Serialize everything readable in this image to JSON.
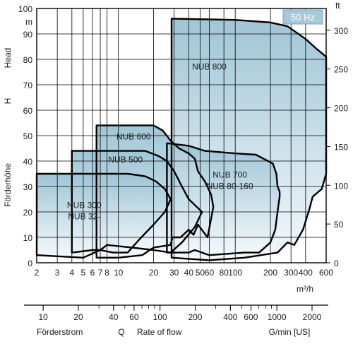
{
  "chart_data": {
    "type": "area",
    "xscale": "log",
    "xlim": [
      2,
      600
    ],
    "ylim": [
      0,
      100
    ],
    "x_unit": "m³/h",
    "y_unit_left": "m",
    "y_unit_right": "ft",
    "badge": "50 Hz",
    "ylabel": [
      "Förderhöhe",
      "H",
      "Head"
    ],
    "xlabel_bottom": [
      "Förderstrom",
      "Q",
      "Rate of flow",
      "G/min [US]"
    ],
    "x_ticks": [
      2,
      3,
      4,
      5,
      6,
      7,
      8,
      10,
      20,
      30,
      40,
      50,
      60,
      80,
      100,
      200,
      300,
      400,
      600
    ],
    "x_tick_labels": [
      "2",
      "3",
      "4",
      "5",
      "6",
      "7",
      "8",
      "10",
      "20",
      "30",
      "40",
      "50",
      "60",
      "80",
      "100",
      "200",
      "300",
      "400",
      "600"
    ],
    "y_ticks": [
      0,
      10,
      20,
      30,
      40,
      50,
      60,
      70,
      80,
      90,
      100
    ],
    "y_tick_labels": [
      "0",
      "10",
      "20",
      "30",
      "40",
      "50",
      "60",
      "70",
      "80",
      "90",
      "100"
    ],
    "ft_ticks": [
      0,
      50,
      100,
      150,
      200,
      250,
      300
    ],
    "ft_tick_labels": [
      "0",
      "50",
      "100",
      "150",
      "200",
      "250",
      "300"
    ],
    "gpm_ticks": [
      10,
      20,
      40,
      60,
      100,
      200,
      400,
      600,
      1000,
      2000
    ],
    "gpm_tick_labels": [
      "10",
      "20",
      "40",
      "60",
      "100",
      "200",
      "400",
      "600",
      "1000",
      "2000"
    ],
    "series": [
      {
        "name": "NUB 800",
        "label_lines": [
          "NUB 800"
        ],
        "label_at": [
          60,
          76
        ],
        "points": [
          [
            28.5,
            96
          ],
          [
            100,
            95.5
          ],
          [
            200,
            94.5
          ],
          [
            280,
            93
          ],
          [
            400,
            88
          ],
          [
            500,
            84
          ],
          [
            600,
            81
          ],
          [
            600,
            35
          ],
          [
            550,
            29
          ],
          [
            460,
            26
          ],
          [
            430,
            21
          ],
          [
            380,
            13
          ],
          [
            320,
            7
          ],
          [
            280,
            8
          ],
          [
            230,
            4
          ],
          [
            120,
            2
          ],
          [
            60,
            1
          ],
          [
            28.5,
            2
          ]
        ]
      },
      {
        "name": "NUB 700 / NUB 80-160",
        "label_lines": [
          "NUB 700",
          "NUB 80-160"
        ],
        "label_at": [
          90,
          33.5
        ],
        "points": [
          [
            26,
            47
          ],
          [
            40,
            46
          ],
          [
            55,
            44
          ],
          [
            100,
            43
          ],
          [
            150,
            42.5
          ],
          [
            210,
            39
          ],
          [
            225,
            35
          ],
          [
            230,
            30
          ],
          [
            240,
            28
          ],
          [
            240,
            26
          ],
          [
            230,
            20
          ],
          [
            220,
            13
          ],
          [
            200,
            8
          ],
          [
            160,
            4
          ],
          [
            120,
            4
          ],
          [
            60,
            3
          ],
          [
            45,
            5
          ],
          [
            40,
            4
          ],
          [
            34,
            4
          ],
          [
            26,
            4
          ]
        ]
      },
      {
        "name": "NUB 600",
        "label_lines": [
          "NUB 600"
        ],
        "label_at": [
          13.5,
          48.5
        ],
        "points": [
          [
            6.5,
            54
          ],
          [
            20,
            54
          ],
          [
            24,
            52
          ],
          [
            28,
            48
          ],
          [
            33,
            45
          ],
          [
            40,
            43
          ],
          [
            45,
            41
          ],
          [
            48,
            36
          ],
          [
            55,
            32
          ],
          [
            62,
            27
          ],
          [
            65,
            22
          ],
          [
            58,
            10
          ],
          [
            48,
            15
          ],
          [
            44,
            11
          ],
          [
            40,
            13
          ],
          [
            34,
            10
          ],
          [
            29,
            10
          ],
          [
            28,
            7
          ],
          [
            20,
            6
          ],
          [
            16,
            3
          ],
          [
            10,
            2
          ],
          [
            6.5,
            2
          ]
        ]
      },
      {
        "name": "NUB 500",
        "label_lines": [
          "NUB 500"
        ],
        "label_at": [
          11.5,
          39.5
        ],
        "points": [
          [
            4,
            44
          ],
          [
            17,
            44
          ],
          [
            22,
            42
          ],
          [
            26,
            40
          ],
          [
            30,
            36
          ],
          [
            35,
            30
          ],
          [
            40,
            25
          ],
          [
            52,
            20
          ],
          [
            45,
            14
          ],
          [
            35,
            8
          ],
          [
            28,
            4
          ],
          [
            20,
            5
          ],
          [
            13,
            6
          ],
          [
            8,
            7
          ],
          [
            7,
            5
          ],
          [
            6,
            5
          ],
          [
            4,
            4
          ]
        ]
      },
      {
        "name": "NUB 300 / NUB 32-",
        "label_lines": [
          "NUB 300",
          "NUB 32-"
        ],
        "label_at": [
          5.1,
          21.5
        ],
        "points": [
          [
            2,
            35
          ],
          [
            12,
            35
          ],
          [
            17,
            34
          ],
          [
            21,
            32
          ],
          [
            25,
            29
          ],
          [
            28,
            25
          ],
          [
            25,
            20
          ],
          [
            20,
            15
          ],
          [
            15,
            9
          ],
          [
            12,
            4
          ],
          [
            9,
            4
          ],
          [
            7,
            5
          ],
          [
            5,
            2
          ],
          [
            2,
            3
          ]
        ]
      }
    ]
  },
  "colors": {
    "fill_top": "#9fc5d6",
    "fill_bottom": "#f4f9fc",
    "outline": "#000000",
    "grid": "#000000",
    "badge_bg": "#a9c9d8",
    "badge_border": "#7aa3b8"
  }
}
